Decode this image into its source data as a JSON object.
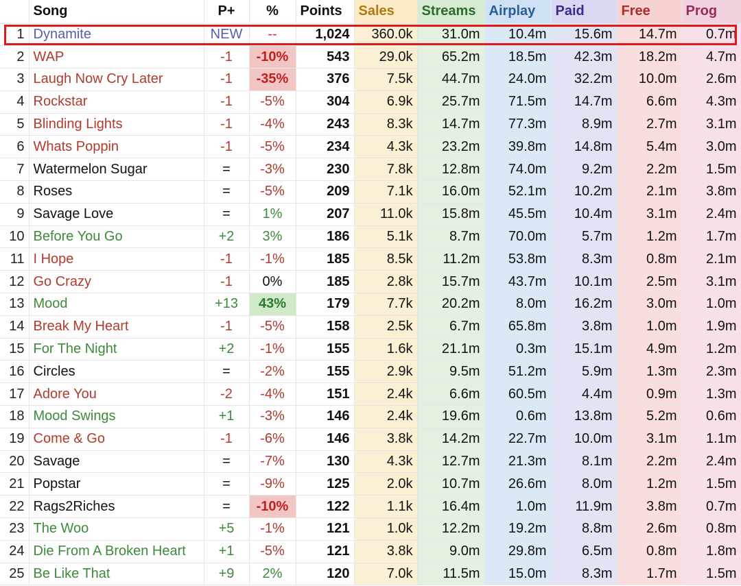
{
  "headers": [
    "",
    "Song",
    "P+",
    "%",
    "Points",
    "Sales",
    "Streams",
    "Airplay",
    "Paid",
    "Free",
    "Prog"
  ],
  "rows": [
    {
      "rank": "1",
      "song": "Dynamite",
      "pp": "NEW",
      "pct": "--",
      "points": "1,024",
      "sales": "360.0k",
      "streams": "31.0m",
      "airplay": "10.4m",
      "paid": "15.6m",
      "free": "14.7m",
      "prog": "0.7m",
      "trend": "new",
      "hl": ""
    },
    {
      "rank": "2",
      "song": "WAP",
      "pp": "-1",
      "pct": "-10%",
      "points": "543",
      "sales": "29.0k",
      "streams": "65.2m",
      "airplay": "18.5m",
      "paid": "42.3m",
      "free": "18.2m",
      "prog": "4.7m",
      "trend": "down",
      "hl": "red"
    },
    {
      "rank": "3",
      "song": "Laugh Now Cry Later",
      "pp": "-1",
      "pct": "-35%",
      "points": "376",
      "sales": "7.5k",
      "streams": "44.7m",
      "airplay": "24.0m",
      "paid": "32.2m",
      "free": "10.0m",
      "prog": "2.6m",
      "trend": "down",
      "hl": "red"
    },
    {
      "rank": "4",
      "song": "Rockstar",
      "pp": "-1",
      "pct": "-5%",
      "points": "304",
      "sales": "6.9k",
      "streams": "25.7m",
      "airplay": "71.5m",
      "paid": "14.7m",
      "free": "6.6m",
      "prog": "4.3m",
      "trend": "down",
      "hl": ""
    },
    {
      "rank": "5",
      "song": "Blinding Lights",
      "pp": "-1",
      "pct": "-4%",
      "points": "243",
      "sales": "8.3k",
      "streams": "14.7m",
      "airplay": "77.3m",
      "paid": "8.9m",
      "free": "2.7m",
      "prog": "3.1m",
      "trend": "down",
      "hl": ""
    },
    {
      "rank": "6",
      "song": "Whats Poppin",
      "pp": "-1",
      "pct": "-5%",
      "points": "234",
      "sales": "4.3k",
      "streams": "23.2m",
      "airplay": "39.8m",
      "paid": "14.8m",
      "free": "5.4m",
      "prog": "3.0m",
      "trend": "down",
      "hl": ""
    },
    {
      "rank": "7",
      "song": "Watermelon Sugar",
      "pp": "=",
      "pct": "-3%",
      "points": "230",
      "sales": "7.8k",
      "streams": "12.8m",
      "airplay": "74.0m",
      "paid": "9.2m",
      "free": "2.2m",
      "prog": "1.5m",
      "trend": "same",
      "hl": ""
    },
    {
      "rank": "8",
      "song": "Roses",
      "pp": "=",
      "pct": "-5%",
      "points": "209",
      "sales": "7.1k",
      "streams": "16.0m",
      "airplay": "52.1m",
      "paid": "10.2m",
      "free": "2.1m",
      "prog": "3.8m",
      "trend": "same",
      "hl": ""
    },
    {
      "rank": "9",
      "song": "Savage Love",
      "pp": "=",
      "pct": "1%",
      "points": "207",
      "sales": "11.0k",
      "streams": "15.8m",
      "airplay": "45.5m",
      "paid": "10.4m",
      "free": "3.1m",
      "prog": "2.4m",
      "trend": "same",
      "hl": ""
    },
    {
      "rank": "10",
      "song": "Before You Go",
      "pp": "+2",
      "pct": "3%",
      "points": "186",
      "sales": "5.1k",
      "streams": "8.7m",
      "airplay": "70.0m",
      "paid": "5.7m",
      "free": "1.2m",
      "prog": "1.7m",
      "trend": "up",
      "hl": ""
    },
    {
      "rank": "11",
      "song": "I Hope",
      "pp": "-1",
      "pct": "-1%",
      "points": "185",
      "sales": "8.5k",
      "streams": "11.2m",
      "airplay": "53.8m",
      "paid": "8.3m",
      "free": "0.8m",
      "prog": "2.1m",
      "trend": "down",
      "hl": ""
    },
    {
      "rank": "12",
      "song": "Go Crazy",
      "pp": "-1",
      "pct": "0%",
      "points": "185",
      "sales": "2.8k",
      "streams": "15.7m",
      "airplay": "43.7m",
      "paid": "10.1m",
      "free": "2.5m",
      "prog": "3.1m",
      "trend": "down",
      "hl": ""
    },
    {
      "rank": "13",
      "song": "Mood",
      "pp": "+13",
      "pct": "43%",
      "points": "179",
      "sales": "7.7k",
      "streams": "20.2m",
      "airplay": "8.0m",
      "paid": "16.2m",
      "free": "3.0m",
      "prog": "1.0m",
      "trend": "up",
      "hl": "green"
    },
    {
      "rank": "14",
      "song": "Break My Heart",
      "pp": "-1",
      "pct": "-5%",
      "points": "158",
      "sales": "2.5k",
      "streams": "6.7m",
      "airplay": "65.8m",
      "paid": "3.8m",
      "free": "1.0m",
      "prog": "1.9m",
      "trend": "down",
      "hl": ""
    },
    {
      "rank": "15",
      "song": "For The Night",
      "pp": "+2",
      "pct": "-1%",
      "points": "155",
      "sales": "1.6k",
      "streams": "21.1m",
      "airplay": "0.3m",
      "paid": "15.1m",
      "free": "4.9m",
      "prog": "1.2m",
      "trend": "up",
      "hl": ""
    },
    {
      "rank": "16",
      "song": "Circles",
      "pp": "=",
      "pct": "-2%",
      "points": "155",
      "sales": "2.9k",
      "streams": "9.5m",
      "airplay": "51.2m",
      "paid": "5.9m",
      "free": "1.3m",
      "prog": "2.3m",
      "trend": "same",
      "hl": ""
    },
    {
      "rank": "17",
      "song": "Adore You",
      "pp": "-2",
      "pct": "-4%",
      "points": "151",
      "sales": "2.4k",
      "streams": "6.6m",
      "airplay": "60.5m",
      "paid": "4.4m",
      "free": "0.9m",
      "prog": "1.3m",
      "trend": "down",
      "hl": ""
    },
    {
      "rank": "18",
      "song": "Mood Swings",
      "pp": "+1",
      "pct": "-3%",
      "points": "146",
      "sales": "2.4k",
      "streams": "19.6m",
      "airplay": "0.6m",
      "paid": "13.8m",
      "free": "5.2m",
      "prog": "0.6m",
      "trend": "up",
      "hl": ""
    },
    {
      "rank": "19",
      "song": "Come & Go",
      "pp": "-1",
      "pct": "-6%",
      "points": "146",
      "sales": "3.8k",
      "streams": "14.2m",
      "airplay": "22.7m",
      "paid": "10.0m",
      "free": "3.1m",
      "prog": "1.1m",
      "trend": "down",
      "hl": ""
    },
    {
      "rank": "20",
      "song": "Savage",
      "pp": "=",
      "pct": "-7%",
      "points": "130",
      "sales": "4.3k",
      "streams": "12.7m",
      "airplay": "21.3m",
      "paid": "8.1m",
      "free": "2.2m",
      "prog": "2.4m",
      "trend": "same",
      "hl": ""
    },
    {
      "rank": "21",
      "song": "Popstar",
      "pp": "=",
      "pct": "-9%",
      "points": "125",
      "sales": "2.0k",
      "streams": "10.7m",
      "airplay": "26.6m",
      "paid": "8.0m",
      "free": "1.2m",
      "prog": "1.5m",
      "trend": "same",
      "hl": ""
    },
    {
      "rank": "22",
      "song": "Rags2Riches",
      "pp": "=",
      "pct": "-10%",
      "points": "122",
      "sales": "1.1k",
      "streams": "16.4m",
      "airplay": "1.0m",
      "paid": "11.9m",
      "free": "3.8m",
      "prog": "0.7m",
      "trend": "same",
      "hl": "red"
    },
    {
      "rank": "23",
      "song": "The Woo",
      "pp": "+5",
      "pct": "-1%",
      "points": "121",
      "sales": "1.0k",
      "streams": "12.2m",
      "airplay": "19.2m",
      "paid": "8.8m",
      "free": "2.6m",
      "prog": "0.8m",
      "trend": "up",
      "hl": ""
    },
    {
      "rank": "24",
      "song": "Die From A Broken Heart",
      "pp": "+1",
      "pct": "-5%",
      "points": "121",
      "sales": "3.8k",
      "streams": "9.0m",
      "airplay": "29.8m",
      "paid": "6.5m",
      "free": "0.8m",
      "prog": "1.8m",
      "trend": "up",
      "hl": ""
    },
    {
      "rank": "25",
      "song": "Be Like That",
      "pp": "+9",
      "pct": "2%",
      "points": "120",
      "sales": "7.0k",
      "streams": "11.5m",
      "airplay": "15.0m",
      "paid": "8.3m",
      "free": "1.7m",
      "prog": "1.5m",
      "trend": "up",
      "hl": ""
    }
  ],
  "colors": {
    "highlight_border": "#e01818",
    "up": "#3c8a3c",
    "down": "#b03a2e",
    "new": "#5a5ab0"
  }
}
